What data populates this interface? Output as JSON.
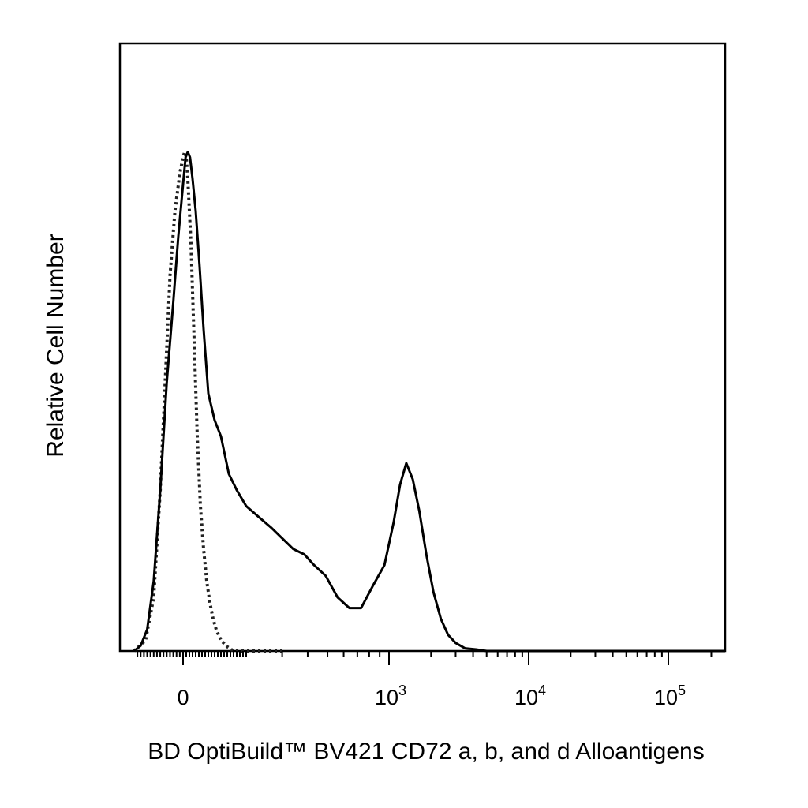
{
  "chart_data": {
    "type": "line",
    "title": "",
    "xlabel": "BD OptiBuild™ BV421 CD72 a, b, and d Alloantigens",
    "ylabel": "Relative Cell Number",
    "x_scale": "biexponential",
    "xlim": [
      -150,
      250000
    ],
    "ylim": [
      0,
      1.0
    ],
    "grid": false,
    "legend": "none",
    "x_tick_labels": [
      {
        "base": "0",
        "exp": "",
        "value": 0
      },
      {
        "base": "10",
        "exp": "3",
        "value": 1000
      },
      {
        "base": "10",
        "exp": "4",
        "value": 10000
      },
      {
        "base": "10",
        "exp": "5",
        "value": 100000
      }
    ],
    "series": [
      {
        "style": "dotted",
        "color": "#222222",
        "x": [
          -150,
          -115,
          -90,
          -70,
          -55,
          -40,
          -25,
          -10,
          0,
          5,
          10,
          15,
          25,
          35,
          45,
          55,
          65,
          75,
          85,
          95,
          105,
          120,
          140,
          160,
          190,
          250,
          300
        ],
        "y": [
          0.0,
          0.02,
          0.1,
          0.3,
          0.5,
          0.7,
          0.82,
          0.89,
          0.92,
          0.93,
          0.92,
          0.88,
          0.76,
          0.58,
          0.4,
          0.27,
          0.19,
          0.13,
          0.09,
          0.06,
          0.04,
          0.02,
          0.008,
          0.0,
          0.0,
          0.0,
          0.0
        ]
      },
      {
        "style": "solid",
        "color": "#000000",
        "x": [
          -150,
          -130,
          -110,
          -90,
          -70,
          -50,
          -30,
          -15,
          0,
          8,
          15,
          22,
          30,
          40,
          52,
          65,
          80,
          100,
          120,
          145,
          170,
          200,
          230,
          265,
          300,
          340,
          385,
          430,
          490,
          560,
          640,
          730,
          830,
          950,
          1080,
          1200,
          1330,
          1480,
          1650,
          1850,
          2080,
          2350,
          2650,
          3000,
          3500,
          4200,
          5000,
          6000,
          8000,
          12000,
          20000,
          50000,
          100000,
          250000
        ],
        "y": [
          0.0,
          0.01,
          0.04,
          0.13,
          0.3,
          0.5,
          0.65,
          0.77,
          0.87,
          0.92,
          0.93,
          0.92,
          0.88,
          0.82,
          0.72,
          0.6,
          0.48,
          0.43,
          0.4,
          0.33,
          0.3,
          0.27,
          0.25,
          0.23,
          0.21,
          0.19,
          0.18,
          0.16,
          0.14,
          0.1,
          0.08,
          0.08,
          0.12,
          0.16,
          0.24,
          0.31,
          0.35,
          0.32,
          0.26,
          0.18,
          0.11,
          0.06,
          0.03,
          0.015,
          0.005,
          0.003,
          0.0,
          0.0,
          0.0,
          0.0,
          0.0,
          0.0,
          0.0,
          0.0
        ]
      }
    ]
  }
}
